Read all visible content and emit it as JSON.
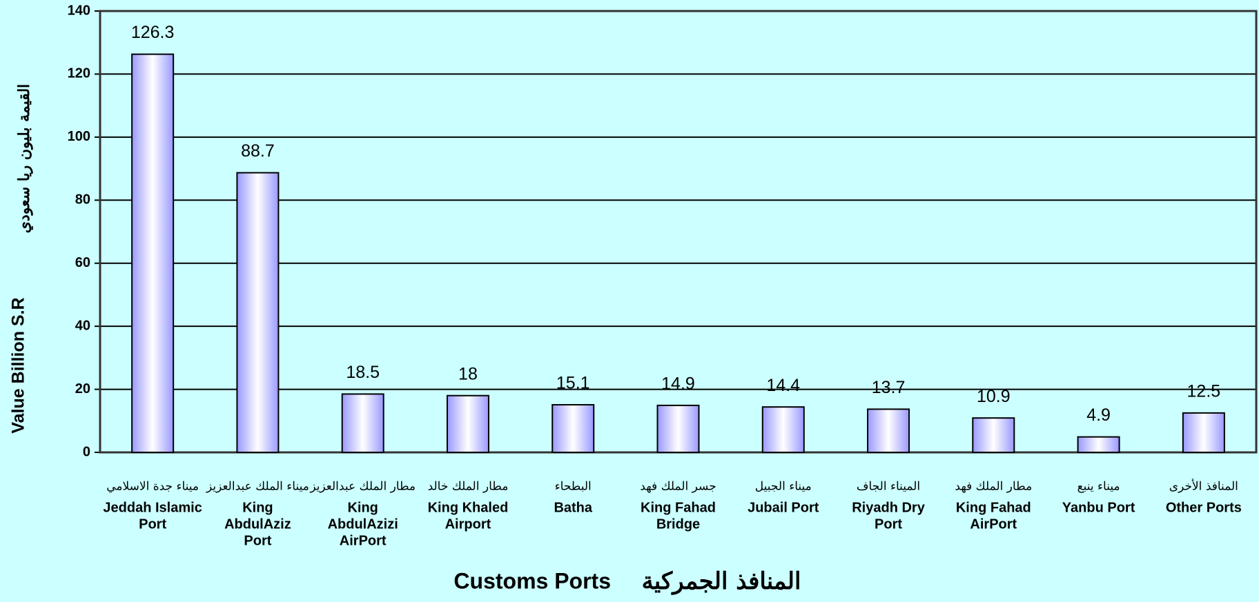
{
  "chart_data": {
    "type": "bar",
    "categories": [
      [
        "Jeddah Islamic",
        "Port"
      ],
      [
        "King",
        "AbdulAziz",
        "Port"
      ],
      [
        "King",
        "AbdulAzizi",
        "AirPort"
      ],
      [
        "King Khaled",
        "Airport"
      ],
      [
        "Batha"
      ],
      [
        "King Fahad",
        "Bridge"
      ],
      [
        "Jubail Port"
      ],
      [
        "Riyadh Dry",
        "Port"
      ],
      [
        "King Fahad",
        "AirPort"
      ],
      [
        "Yanbu Port"
      ],
      [
        "Other Ports"
      ]
    ],
    "categories_ar": [
      "ميناء جدة الاسلامي",
      "ميناء الملك عبدالعزيز",
      "مطار الملك عبدالعزيز",
      "مطار الملك خالد",
      "البطحاء",
      "جسر الملك فهد",
      "ميناء الجبيل",
      "الميناء الجاف",
      "مطار الملك فهد",
      "ميناء ينبع",
      "المنافذ الأخرى"
    ],
    "values": [
      126.3,
      88.7,
      18.5,
      18,
      15.1,
      14.9,
      14.4,
      13.7,
      10.9,
      4.9,
      12.5
    ],
    "color": "#9999ff",
    "ylabel": "Value Billion S.R",
    "ylabel_ar": "القيمة بليون ريا سعودي",
    "xlabel": "Customs Ports",
    "xlabel_ar": "المنافذ الجمركية",
    "ylim": [
      0,
      140
    ],
    "yticks": [
      0,
      20,
      40,
      60,
      80,
      100,
      120,
      140
    ],
    "grid": true
  }
}
